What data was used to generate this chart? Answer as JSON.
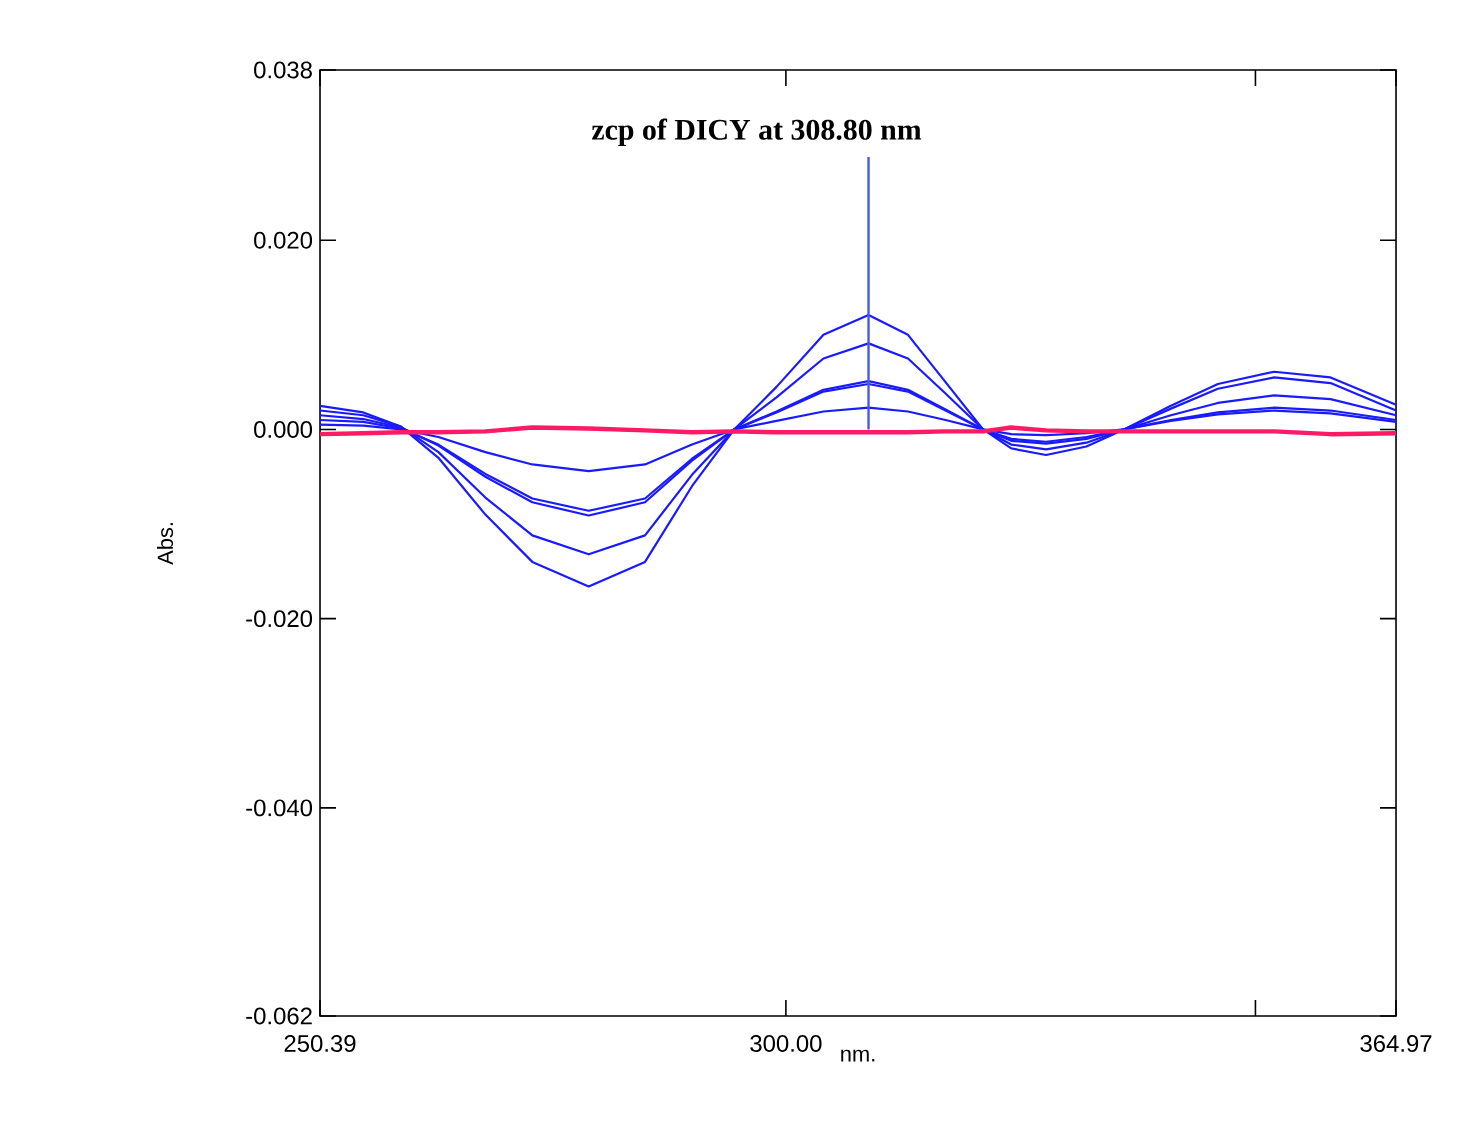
{
  "chart_data": {
    "type": "line",
    "xlabel": "nm.",
    "ylabel": "Abs.",
    "x": [
      250.39,
      255,
      259,
      263,
      268,
      273,
      279,
      285,
      290,
      294.5,
      299,
      304,
      308.8,
      313,
      317,
      321,
      324,
      327.7,
      332,
      336,
      341,
      346,
      352,
      358,
      364.97
    ],
    "series": [
      {
        "color": "#1a1aff",
        "values": [
          0.0025,
          0.0018,
          0.0003,
          -0.003,
          -0.009,
          -0.014,
          -0.0166,
          -0.014,
          -0.006,
          0.0,
          0.0045,
          0.01,
          0.0121,
          0.01,
          0.005,
          0.0,
          -0.002,
          -0.0027,
          -0.0018,
          0.0,
          0.0025,
          0.0048,
          0.0061,
          0.0055,
          0.0026
        ]
      },
      {
        "color": "#1a1aff",
        "values": [
          0.002,
          0.0015,
          0.0003,
          -0.0024,
          -0.0072,
          -0.0112,
          -0.0132,
          -0.0112,
          -0.0048,
          0.0,
          0.0034,
          0.0075,
          0.0091,
          0.0075,
          0.0038,
          0.0,
          -0.0016,
          -0.0021,
          -0.0014,
          0.0,
          0.0022,
          0.0043,
          0.0055,
          0.0049,
          0.002
        ]
      },
      {
        "color": "#1a1aff",
        "values": [
          0.0015,
          0.0011,
          0.0002,
          -0.0017,
          -0.005,
          -0.0077,
          -0.0091,
          -0.0077,
          -0.0033,
          0.0,
          0.0019,
          0.0042,
          0.0051,
          0.0042,
          0.0021,
          0.0,
          -0.0012,
          -0.0015,
          -0.001,
          0.0,
          0.0015,
          0.0028,
          0.0036,
          0.0032,
          0.0015
        ]
      },
      {
        "color": "#1a1aff",
        "values": [
          0.001,
          0.0008,
          0.0001,
          -0.0016,
          -0.0047,
          -0.0073,
          -0.0086,
          -0.0073,
          -0.0031,
          0.0,
          0.0018,
          0.004,
          0.0048,
          0.004,
          0.002,
          0.0,
          -0.001,
          -0.0013,
          -0.0008,
          0.0,
          0.001,
          0.0018,
          0.0023,
          0.002,
          0.001
        ]
      },
      {
        "color": "#1a1aff",
        "values": [
          0.0005,
          0.0004,
          0.0,
          -0.0008,
          -0.0024,
          -0.0037,
          -0.0044,
          -0.0037,
          -0.0016,
          0.0,
          0.0009,
          0.0019,
          0.0023,
          0.0019,
          0.001,
          0.0,
          -0.0005,
          -0.0006,
          -0.0004,
          0.0,
          0.0009,
          0.0016,
          0.002,
          0.0017,
          0.0008
        ]
      },
      {
        "color": "#ff1a66",
        "values": [
          -0.0005,
          -0.0004,
          -0.0003,
          -0.0003,
          -0.0002,
          0.0002,
          0.0001,
          -0.0001,
          -0.0003,
          -0.0002,
          -0.0003,
          -0.0003,
          -0.0003,
          -0.0003,
          -0.0002,
          -0.0002,
          0.0002,
          -0.0001,
          -0.0002,
          -0.0002,
          -0.0002,
          -0.0002,
          -0.0002,
          -0.0005,
          -0.0004
        ]
      }
    ],
    "xlim": [
      250.39,
      364.97
    ],
    "xticks": [
      250.39,
      {
        "value": 300,
        "label": "300.00"
      },
      {
        "value": 350,
        "label": null
      },
      364.97
    ],
    "ylim": [
      -0.062,
      0.038
    ],
    "yticks": [
      -0.062,
      {
        "value": -0.04,
        "label": "-0.040"
      },
      {
        "value": -0.02,
        "label": "-0.020"
      },
      {
        "value": 0,
        "label": "0.000"
      },
      {
        "value": 0.02,
        "label": "0.020"
      },
      0.038
    ],
    "ref_lines": [
      {
        "axis": "x",
        "value": 308.8,
        "label": "zcp of DICY at 308.80 nm",
        "color": "#4a5ae0"
      }
    ],
    "marker": "none",
    "line_style": "solid"
  }
}
